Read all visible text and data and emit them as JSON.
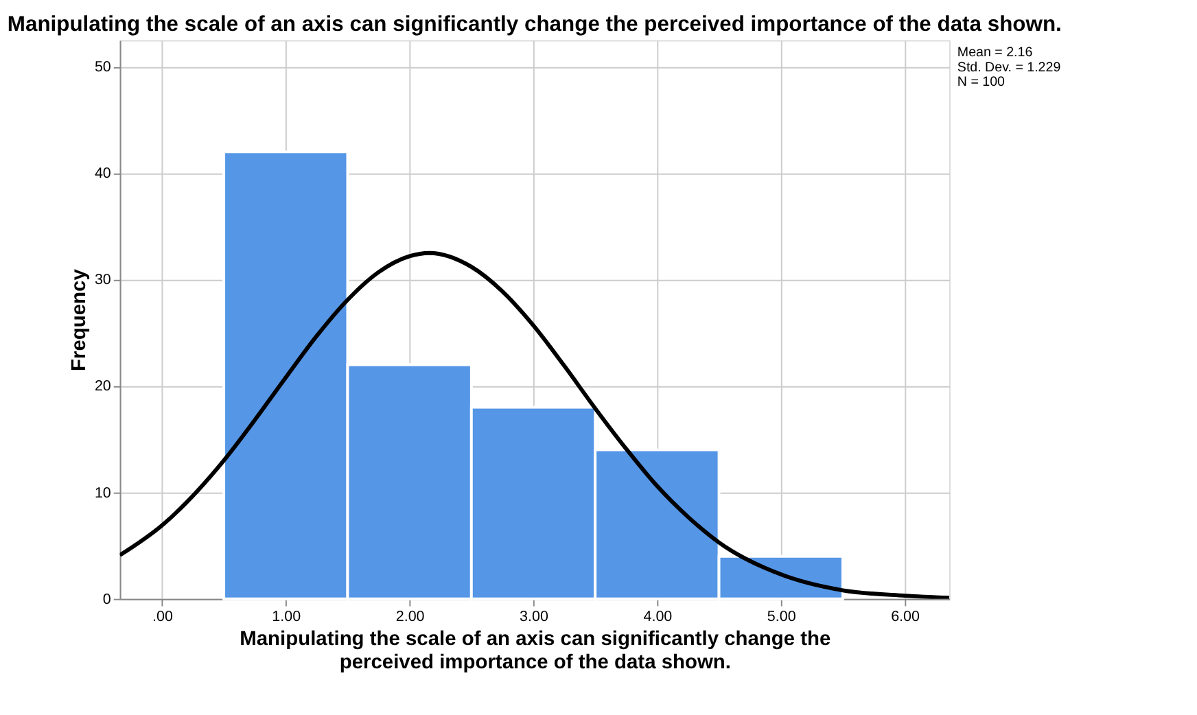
{
  "chart_data": {
    "type": "histogram",
    "title": "Manipulating the scale of an axis can significantly change the perceived importance of the data shown.",
    "xlabel": "Manipulating the scale of an axis can significantly change the perceived importance of the data shown.",
    "ylabel": "Frequency",
    "bins": [
      0.5,
      1.5,
      2.5,
      3.5,
      4.5,
      5.5
    ],
    "values": [
      42,
      22,
      18,
      14,
      4
    ],
    "color": "#5596e6",
    "series": [
      {
        "type": "line",
        "color": "#000000",
        "x": [
          -0.34,
          0,
          0.5,
          0.75,
          1.0,
          1.25,
          1.5,
          1.75,
          2.0,
          2.16,
          2.5,
          2.75,
          3.0,
          3.25,
          3.5,
          3.75,
          4.0,
          4.25,
          4.5,
          5.0,
          5.5,
          6.0,
          6.36
        ],
        "values": [
          4.1,
          6.9,
          13.0,
          16.8,
          20.8,
          24.7,
          28.1,
          30.7,
          32.2,
          32.5,
          31.2,
          28.9,
          25.7,
          21.9,
          17.9,
          14.1,
          10.6,
          7.7,
          5.3,
          2.3,
          0.8,
          0.3,
          0.1
        ]
      }
    ],
    "xlim": [
      -0.34,
      6.36
    ],
    "xticks": [
      {
        "value": 0,
        "label": ".00"
      },
      {
        "value": 1,
        "label": "1.00"
      },
      {
        "value": 2,
        "label": "2.00"
      },
      {
        "value": 3,
        "label": "3.00"
      },
      {
        "value": 4,
        "label": "4.00"
      },
      {
        "value": 5,
        "label": "5.00"
      },
      {
        "value": 6,
        "label": "6.00"
      }
    ],
    "ylim": [
      0,
      52.5
    ],
    "yticks": [
      0,
      10,
      20,
      30,
      40,
      50
    ],
    "grid": true,
    "annotations": [
      "Mean = 2.16",
      "Std. Dev. = 1.229",
      "N = 100"
    ]
  }
}
